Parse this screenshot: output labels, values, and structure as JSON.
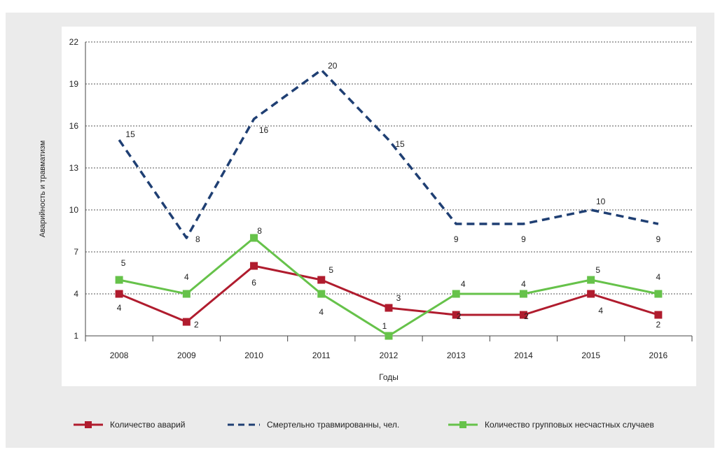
{
  "chart_data": {
    "type": "line",
    "categories": [
      "2008",
      "2009",
      "2010",
      "2011",
      "2012",
      "2013",
      "2014",
      "2015",
      "2016"
    ],
    "ylabel": "Аварийность и травматизм",
    "xlabel": "Годы",
    "yticks": [
      "1",
      "4",
      "7",
      "10",
      "13",
      "16",
      "19",
      "22"
    ],
    "ylim": [
      1,
      22
    ],
    "grid": true,
    "legend_position": "bottom",
    "series": [
      {
        "name": "Количество аварий",
        "color": "#b01c2e",
        "style": "solid-square-markers",
        "values": [
          4,
          2,
          6,
          5,
          3,
          2.5,
          2.5,
          4,
          2.5
        ],
        "labels": [
          "4",
          "2",
          "6",
          "5",
          "3",
          "2",
          "2",
          "4",
          "2"
        ]
      },
      {
        "name": "Смертельно травмированны, чел.",
        "color": "#1f3f73",
        "style": "dashed",
        "values": [
          15,
          8,
          16.5,
          20,
          15,
          9,
          9,
          10,
          9
        ],
        "labels": [
          "15",
          "8",
          "16",
          "20",
          "15",
          "9",
          "9",
          "10",
          "9"
        ]
      },
      {
        "name": "Количество групповых несчастных случаев",
        "color": "#66c24a",
        "style": "solid-square-markers",
        "values": [
          5,
          4,
          8,
          4,
          1,
          4,
          4,
          5,
          4
        ],
        "labels": [
          "5",
          "4",
          "8",
          "4",
          "1",
          "4",
          "4",
          "5",
          "4"
        ]
      }
    ]
  }
}
